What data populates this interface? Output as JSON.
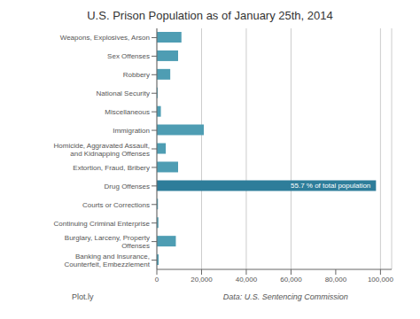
{
  "chart_data": {
    "type": "bar",
    "orientation": "horizontal",
    "title": "U.S. Prison Population as of January 25th, 2014",
    "categories": [
      "Weapons, Explosives, Arson",
      "Sex Offenses",
      "Robbery",
      "National Security",
      "Miscellaneous",
      "Immigration",
      "Homicide, Aggravated Assault, and Kidnapping Offenses",
      "Extortion, Fraud, Bribery",
      "Drug Offenses",
      "Courts or Corrections",
      "Continuing Criminal Enterprise",
      "Burglary, Larceny, Property Offenses",
      "Banking and Insurance, Counterfeit, Embezzlement"
    ],
    "values": [
      11000,
      9500,
      6000,
      400,
      1800,
      21000,
      4000,
      9500,
      98000,
      500,
      700,
      8500,
      800
    ],
    "colors": [
      "#4e9db3",
      "#4e9db3",
      "#4e9db3",
      "#4e9db3",
      "#4e9db3",
      "#4e9db3",
      "#4e9db3",
      "#4e9db3",
      "#2e7d9a",
      "#4e9db3",
      "#4e9db3",
      "#4e9db3",
      "#4e9db3"
    ],
    "xlim": [
      0,
      105000
    ],
    "xticks": [
      0,
      {
        "value": 20000,
        "label": "20,000"
      },
      {
        "value": 40000,
        "label": "40,000"
      },
      {
        "value": 60000,
        "label": "60,000"
      },
      {
        "value": 80000,
        "label": "80,000"
      },
      {
        "value": 100000,
        "label": "100,000"
      }
    ],
    "grid": true,
    "annotations": [
      {
        "text": "55.7 % of total population",
        "category": "Drug Offenses"
      },
      {
        "text": "Plot.ly"
      },
      {
        "text": "Data: U.S. Sentencing Commission"
      }
    ]
  }
}
